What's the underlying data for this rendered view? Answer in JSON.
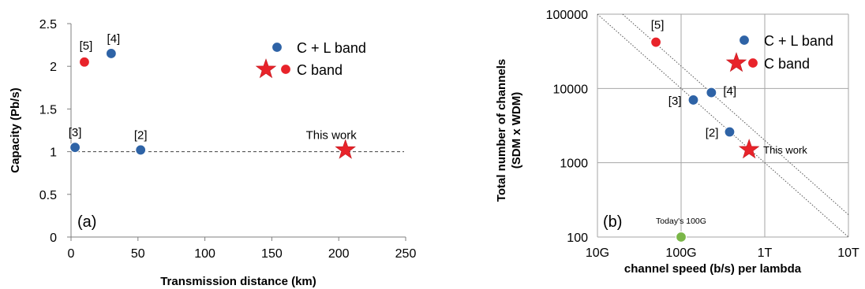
{
  "chart_data": [
    {
      "type": "scatter",
      "panel_label": "(a)",
      "xlabel": "Transmission distance (km)",
      "ylabel": "Capacity (Pb/s)",
      "xlim": [
        0,
        250
      ],
      "ylim": [
        0,
        2.5
      ],
      "x_ticks": [
        0,
        50,
        100,
        150,
        200,
        250
      ],
      "y_ticks": [
        0,
        0.5,
        1,
        1.5,
        2,
        2.5
      ],
      "x_tick_labels": [
        "0",
        "50",
        "100",
        "150",
        "200",
        "250"
      ],
      "y_tick_labels": [
        "0",
        "0.5",
        "1",
        "1.5",
        "2",
        "2.5"
      ],
      "reference_line": {
        "y": 1,
        "style": "dashed"
      },
      "grid": false,
      "legend_position": "top-right",
      "legend": [
        {
          "label": "C + L band",
          "marker": "circle",
          "color": "#2e63a6"
        },
        {
          "label": "C band",
          "marker": "star+circle",
          "color": "#e8232a"
        }
      ],
      "points": [
        {
          "label": "[3]",
          "x": 3,
          "y": 1.05,
          "marker": "circle",
          "color": "#2e63a6"
        },
        {
          "label": "[5]",
          "x": 10,
          "y": 2.05,
          "marker": "circle",
          "color": "#e8232a"
        },
        {
          "label": "[4]",
          "x": 30,
          "y": 2.15,
          "marker": "circle",
          "color": "#2e63a6"
        },
        {
          "label": "[2]",
          "x": 52,
          "y": 1.02,
          "marker": "circle",
          "color": "#2e63a6"
        },
        {
          "label": "This work",
          "x": 205,
          "y": 1.02,
          "marker": "star",
          "color": "#e8232a"
        }
      ]
    },
    {
      "type": "scatter",
      "panel_label": "(b)",
      "xlabel": "channel speed (b/s) per lambda",
      "ylabel": "Total number of channels\n(SDM x WDM)",
      "x_scale": "log",
      "y_scale": "log",
      "xlim": [
        "10G",
        "10T"
      ],
      "ylim": [
        100,
        100000
      ],
      "x_tick_labels": [
        "10G",
        "100G",
        "1T",
        "10T"
      ],
      "y_tick_labels": [
        "100",
        "1000",
        "10000",
        "100000"
      ],
      "grid": true,
      "diagonal_lines": "dotted",
      "legend_position": "top-right",
      "legend": [
        {
          "label": "C + L band",
          "marker": "circle",
          "color": "#2e63a6"
        },
        {
          "label": "C band",
          "marker": "star+circle",
          "color": "#e8232a"
        }
      ],
      "points": [
        {
          "label": "[5]",
          "x_gbps": 50,
          "y": 42000,
          "marker": "circle",
          "color": "#e8232a"
        },
        {
          "label": "[3]",
          "x_gbps": 140,
          "y": 7000,
          "marker": "circle",
          "color": "#2e63a6"
        },
        {
          "label": "[4]",
          "x_gbps": 230,
          "y": 8800,
          "marker": "circle",
          "color": "#2e63a6"
        },
        {
          "label": "[2]",
          "x_gbps": 380,
          "y": 2600,
          "marker": "circle",
          "color": "#2e63a6"
        },
        {
          "label": "This work",
          "x_gbps": 650,
          "y": 1500,
          "marker": "star",
          "color": "#e8232a"
        },
        {
          "label": "Today's 100G",
          "x_gbps": 100,
          "y": 100,
          "marker": "circle",
          "color": "#7ab648"
        }
      ]
    }
  ]
}
